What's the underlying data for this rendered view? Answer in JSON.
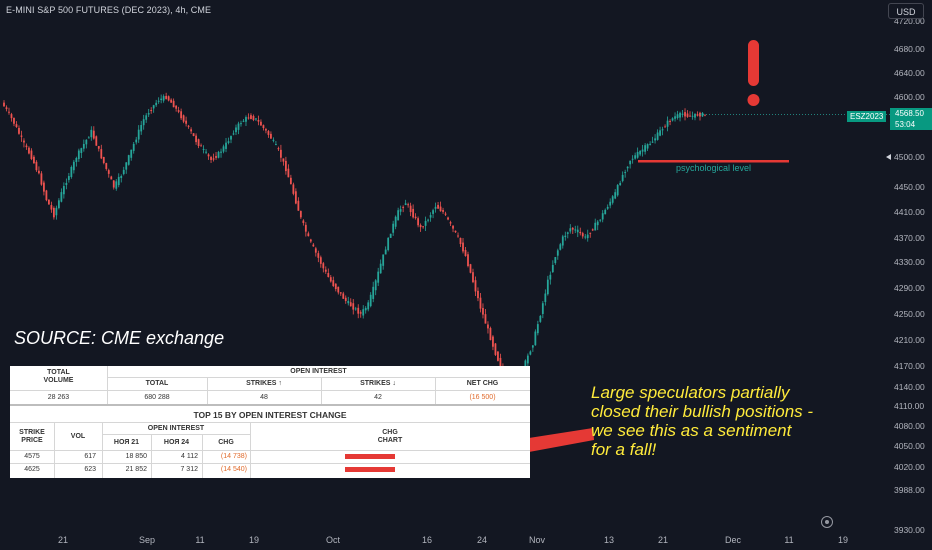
{
  "header": {
    "symbol_title": "E-MINI S&P 500 FUTURES (DEC 2023), 4h, CME",
    "currency": "USD"
  },
  "price_marker": {
    "ticker": "ESZ2023",
    "price": "4568.50",
    "countdown": "53:04"
  },
  "annotations": {
    "source": "SOURCE: CME exchange",
    "psychological_level": "psychological level",
    "note_lines": [
      "Large speculators partially",
      "closed their bullish positions -",
      "we see this as a sentiment",
      "for a fall!"
    ]
  },
  "colors": {
    "background": "#131722",
    "up_candle": "#26a69a",
    "down_candle": "#ef5350",
    "accent_red": "#e53935",
    "note_yellow": "#ffeb3b"
  },
  "table": {
    "top": {
      "total_volume_label": "TOTAL\nVOLUME",
      "open_interest_label": "OPEN INTEREST",
      "total_label": "TOTAL",
      "strikes_up_label": "STRIKES ↑",
      "strikes_down_label": "STRIKES ↓",
      "net_chg_label": "NET CHG",
      "total_volume": "28 263",
      "total": "680 288",
      "strikes_up": "48",
      "strikes_down": "42",
      "net_chg": "(16 500)"
    },
    "title": "TOP 15 BY OPEN INTEREST CHANGE",
    "columns": {
      "strike_price": "STRIKE\nPRICE",
      "vol": "VOL",
      "open_interest": "OPEN INTEREST",
      "nov21": "НОЯ 21",
      "nov24": "НОЯ 24",
      "chg": "CHG",
      "chg_chart": "CHG\nCHART"
    },
    "rows": [
      {
        "strike": "4575",
        "vol": "617",
        "nov21": "18 850",
        "nov24": "4 112",
        "chg": "(14 738)"
      },
      {
        "strike": "4625",
        "vol": "623",
        "nov21": "21 852",
        "nov24": "7 312",
        "chg": "(14 540)"
      }
    ]
  },
  "chart_data": {
    "type": "line",
    "title": "E-MINI S&P 500 FUTURES (DEC 2023), 4h, CME",
    "xlabel": "",
    "ylabel": "",
    "x_ticks": [
      "21",
      "Sep",
      "11",
      "19",
      "Oct",
      "16",
      "24",
      "Nov",
      "13",
      "21",
      "Dec",
      "11",
      "19"
    ],
    "y_ticks": [
      4720,
      4680,
      4640,
      4600,
      4550,
      4500,
      4450,
      4410,
      4370,
      4330,
      4290,
      4250,
      4210,
      4170,
      4140,
      4110,
      4080,
      4050,
      4020,
      3988,
      3930
    ],
    "y_tick_labels": [
      "4720.00",
      "4680.00",
      "4640.00",
      "4600.00",
      "4550.00",
      "4500.00",
      "4450.00",
      "4410.00",
      "4370.00",
      "4330.00",
      "4290.00",
      "4250.00",
      "4210.00",
      "4170.00",
      "4140.00",
      "4110.00",
      "4080.00",
      "4050.00",
      "4020.00",
      "3988.00",
      "3930.00"
    ],
    "series": [
      {
        "values": [
          4590,
          4570,
          4545,
          4520,
          4500,
          4470,
          4430,
          4405,
          4440,
          4470,
          4500,
          4520,
          4540,
          4510,
          4480,
          4450,
          4470,
          4500,
          4530,
          4560,
          4580,
          4595,
          4600,
          4585,
          4565,
          4545,
          4525,
          4510,
          4495,
          4505,
          4520,
          4540,
          4555,
          4565,
          4560,
          4545,
          4530,
          4510,
          4480,
          4440,
          4400,
          4370,
          4345,
          4320,
          4300,
          4285,
          4270,
          4260,
          4250,
          4265,
          4300,
          4340,
          4380,
          4410,
          4425,
          4405,
          4385,
          4400,
          4420,
          4410,
          4390,
          4370,
          4340,
          4300,
          4260,
          4225,
          4190,
          4160,
          4130,
          4145,
          4175,
          4205,
          4250,
          4300,
          4340,
          4370,
          4385,
          4380,
          4370,
          4385,
          4400,
          4420,
          4440,
          4470,
          4495,
          4505,
          4515,
          4525,
          4540,
          4555,
          4565,
          4570,
          4565,
          4568.5
        ]
      }
    ],
    "last_price": 4568.5,
    "psychological_level": 4500,
    "ylim": [
      3920,
      4740
    ],
    "grid": false,
    "legend": "none"
  }
}
